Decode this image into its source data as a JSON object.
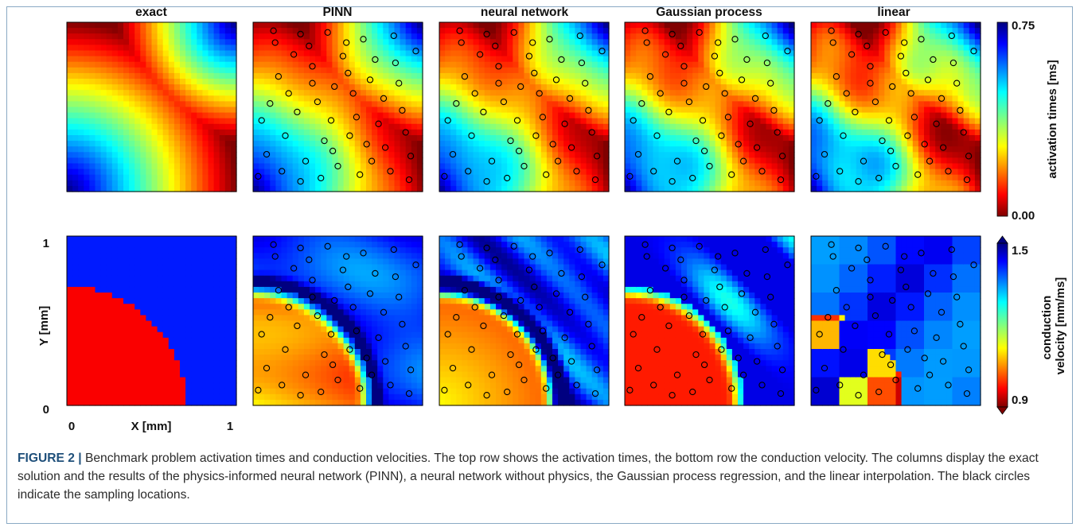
{
  "figure": {
    "label": "FIGURE 2 |",
    "caption": "Benchmark problem activation times and conduction velocities. The top row shows the activation times, the bottom row the conduction velocity. The columns display the exact solution and the results of the physics-informed neural network (PINN), a neural network without physics, the Gaussian process regression, and the linear interpolation. The black circles indicate the sampling locations.",
    "columns": [
      "exact",
      "PINN",
      "neural network",
      "Gaussian process",
      "linear"
    ],
    "colormap": "jet",
    "rows": [
      "activation times",
      "conduction velocity"
    ]
  },
  "chart_data": [
    {
      "type": "heatmap",
      "row": "top",
      "quantity": "activation times [ms]",
      "colorbar": {
        "label": "activation times [ms]",
        "min": 0.0,
        "max": 0.75,
        "tick_labels": [
          "0.00",
          "0.75"
        ]
      },
      "panels": [
        "exact",
        "PINN",
        "neural network",
        "Gaussian process",
        "linear"
      ],
      "xlim": [
        0,
        1
      ],
      "ylim": [
        0,
        1
      ]
    },
    {
      "type": "heatmap",
      "row": "bottom",
      "quantity": "conduction velocity [mm/ms]",
      "colorbar": {
        "label": "conduction velocity [mm/ms]",
        "min": 0.9,
        "max": 1.5,
        "tick_labels": [
          "0.9",
          "1.5"
        ],
        "extend": "both"
      },
      "panels": [
        "exact",
        "PINN",
        "neural network",
        "Gaussian process",
        "linear"
      ],
      "xlabel": "X [mm]",
      "ylabel": "Y [mm]",
      "xticks": [
        "0",
        "1"
      ],
      "yticks": [
        "0",
        "1"
      ],
      "xlim": [
        0,
        1
      ],
      "ylim": [
        0,
        1
      ],
      "exact_boundary_radius": 0.7
    }
  ],
  "samples": [
    [
      0.12,
      0.95
    ],
    [
      0.28,
      0.06
    ],
    [
      0.92,
      0.07
    ],
    [
      0.05,
      0.42
    ],
    [
      0.55,
      0.88
    ],
    [
      0.48,
      0.62
    ],
    [
      0.61,
      0.44
    ],
    [
      0.35,
      0.74
    ],
    [
      0.7,
      0.18
    ],
    [
      0.83,
      0.92
    ],
    [
      0.15,
      0.68
    ],
    [
      0.42,
      0.3
    ],
    [
      0.77,
      0.55
    ],
    [
      0.26,
      0.47
    ],
    [
      0.63,
      0.1
    ],
    [
      0.9,
      0.35
    ],
    [
      0.5,
      0.15
    ],
    [
      0.08,
      0.22
    ],
    [
      0.33,
      0.86
    ],
    [
      0.72,
      0.78
    ],
    [
      0.56,
      0.7
    ],
    [
      0.19,
      0.33
    ],
    [
      0.86,
      0.64
    ],
    [
      0.44,
      0.94
    ],
    [
      0.67,
      0.28
    ],
    [
      0.38,
      0.53
    ],
    [
      0.96,
      0.83
    ],
    [
      0.24,
      0.81
    ],
    [
      0.59,
      0.58
    ],
    [
      0.81,
      0.12
    ],
    [
      0.46,
      0.42
    ],
    [
      0.13,
      0.88
    ],
    [
      0.74,
      0.4
    ],
    [
      0.31,
      0.18
    ],
    [
      0.53,
      0.8
    ],
    [
      0.88,
      0.48
    ],
    [
      0.21,
      0.58
    ],
    [
      0.65,
      0.9
    ],
    [
      0.4,
      0.08
    ],
    [
      0.78,
      0.26
    ],
    [
      0.1,
      0.52
    ],
    [
      0.57,
      0.33
    ],
    [
      0.35,
      0.64
    ],
    [
      0.93,
      0.21
    ],
    [
      0.03,
      0.09
    ],
    [
      0.69,
      0.66
    ],
    [
      0.47,
      0.24
    ],
    [
      0.28,
      0.93
    ],
    [
      0.84,
      0.76
    ],
    [
      0.17,
      0.12
    ]
  ]
}
